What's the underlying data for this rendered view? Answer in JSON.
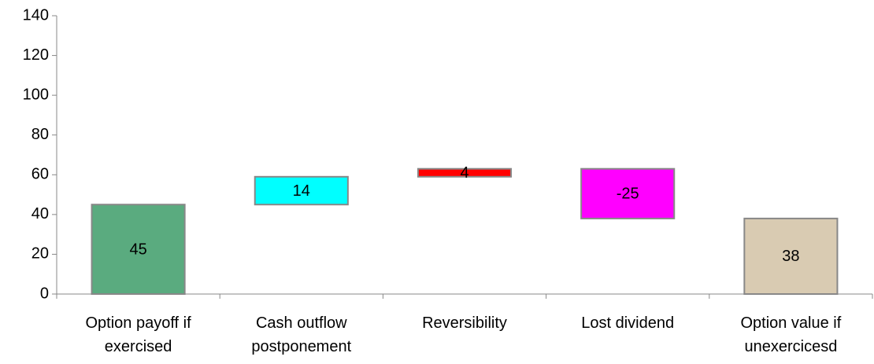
{
  "chart_data": {
    "type": "waterfall",
    "categories": [
      "Option payoff if exercised",
      "Cash outflow postponement",
      "Reversibility",
      "Lost dividend",
      "Option value if unexercicesd"
    ],
    "values": [
      45,
      14,
      4,
      -25,
      38
    ],
    "colors": [
      "#5aab7f",
      "#00ffff",
      "#ff0000",
      "#ff00ff",
      "#d9cbb2"
    ],
    "totals": [
      false,
      false,
      false,
      false,
      true
    ],
    "ylim": [
      0,
      140
    ],
    "yticks": [
      0,
      20,
      40,
      60,
      80,
      100,
      120,
      140
    ],
    "grid": false
  }
}
